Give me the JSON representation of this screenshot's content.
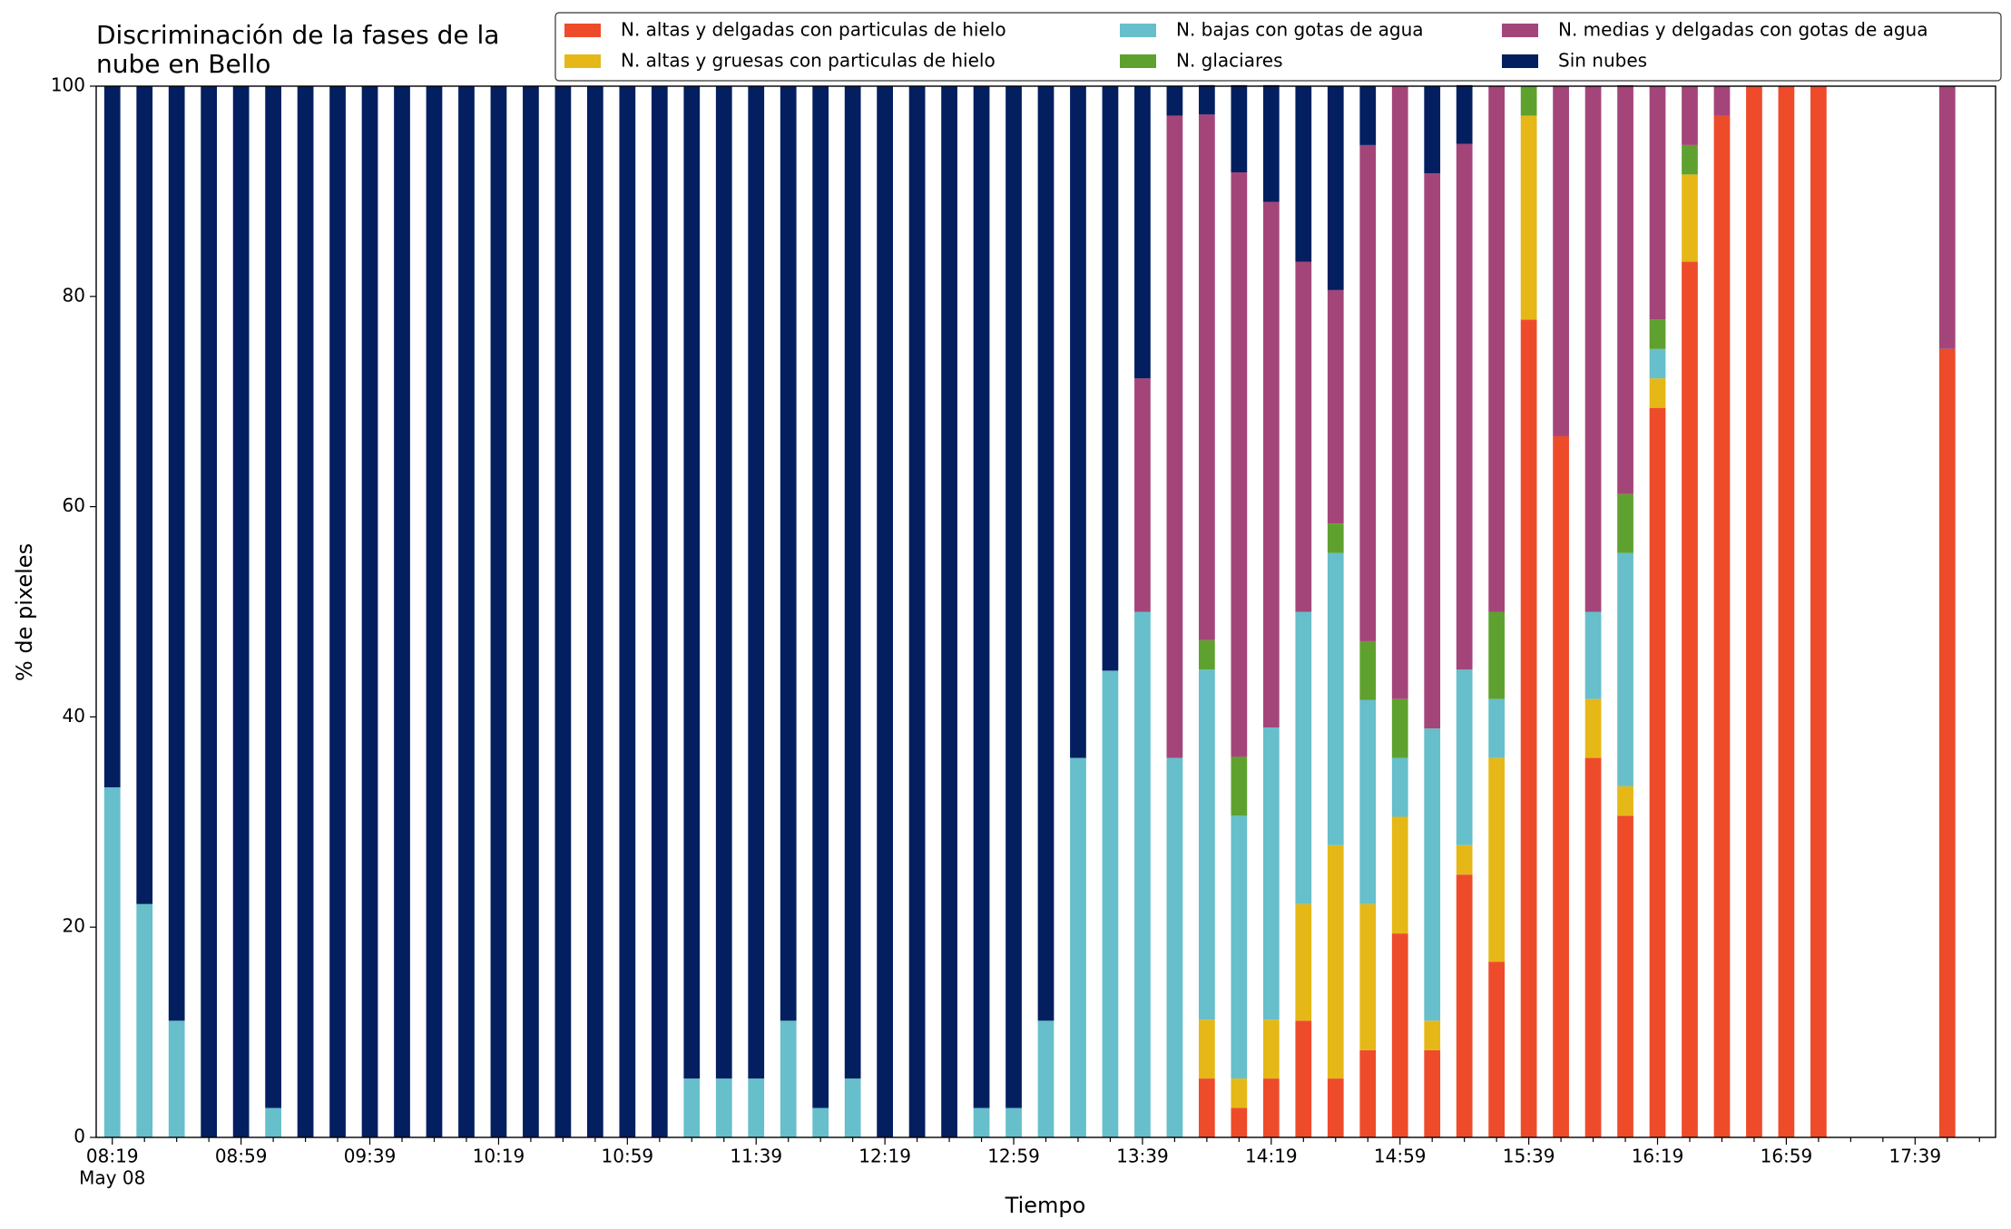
{
  "chart_data": {
    "type": "stacked_bar",
    "title": [
      "Discriminación de la fases de la",
      "nube en Bello"
    ],
    "x_label": "Tiempo",
    "y_label": "% de pixeles",
    "x_sublabel": "May 08",
    "categories": [
      "08:19",
      null,
      null,
      null,
      "08:59",
      null,
      null,
      null,
      "09:39",
      null,
      null,
      null,
      "10:19",
      null,
      null,
      null,
      "10:59",
      null,
      null,
      null,
      "11:39",
      null,
      null,
      null,
      "12:19",
      null,
      null,
      null,
      "12:59",
      null,
      null,
      null,
      "13:39",
      null,
      null,
      null,
      "14:19",
      null,
      null,
      null,
      "14:59",
      null,
      null,
      null,
      "15:39",
      null,
      null,
      null,
      "16:19",
      null,
      null,
      null,
      "16:59",
      null,
      null,
      null,
      "17:39",
      null,
      null
    ],
    "series": [
      {
        "name": "N. altas y delgadas con particulas de hielo",
        "color": "#ee4b2b",
        "values": [
          0,
          0,
          0,
          0,
          0,
          0,
          0,
          0,
          0,
          0,
          0,
          0,
          0,
          0,
          0,
          0,
          0,
          0,
          0,
          0,
          0,
          0,
          0,
          0,
          0,
          0,
          0,
          0,
          0,
          0,
          0,
          0,
          0,
          0,
          5.6,
          2.8,
          5.6,
          11.1,
          5.6,
          8.3,
          19.4,
          8.3,
          25,
          16.7,
          77.8,
          66.7,
          36.1,
          30.6,
          69.4,
          83.3,
          97.2,
          100,
          100,
          100,
          0,
          0,
          0,
          75,
          0
        ]
      },
      {
        "name": "N. altas y gruesas con particulas de hielo",
        "color": "#e6b817",
        "values": [
          0,
          0,
          0,
          0,
          0,
          0,
          0,
          0,
          0,
          0,
          0,
          0,
          0,
          0,
          0,
          0,
          0,
          0,
          0,
          0,
          0,
          0,
          0,
          0,
          0,
          0,
          0,
          0,
          0,
          0,
          0,
          0,
          0,
          0,
          5.6,
          2.8,
          5.6,
          11.1,
          22.2,
          13.9,
          11.1,
          2.8,
          2.8,
          19.4,
          19.4,
          0,
          5.6,
          2.8,
          2.8,
          8.3,
          0,
          0,
          0,
          0,
          0,
          0,
          0,
          0,
          0
        ]
      },
      {
        "name": "N. bajas con gotas de agua",
        "color": "#66bfcb",
        "values": [
          33.3,
          22.2,
          11.1,
          0,
          0,
          2.8,
          0,
          0,
          0,
          0,
          0,
          0,
          0,
          0,
          0,
          0,
          0,
          0,
          5.6,
          5.6,
          5.6,
          11.1,
          2.8,
          5.6,
          0,
          0,
          0,
          2.8,
          2.8,
          11.1,
          36.1,
          44.4,
          50,
          36.1,
          33.3,
          25,
          27.8,
          27.8,
          27.8,
          19.4,
          5.6,
          27.8,
          16.7,
          5.6,
          0,
          0,
          8.3,
          22.2,
          2.8,
          0,
          0,
          0,
          0,
          0,
          0,
          0,
          0,
          0,
          0
        ]
      },
      {
        "name": "N. glaciares",
        "color": "#5fa12e",
        "values": [
          0,
          0,
          0,
          0,
          0,
          0,
          0,
          0,
          0,
          0,
          0,
          0,
          0,
          0,
          0,
          0,
          0,
          0,
          0,
          0,
          0,
          0,
          0,
          0,
          0,
          0,
          0,
          0,
          0,
          0,
          0,
          0,
          0,
          0,
          2.8,
          5.6,
          0,
          0,
          2.8,
          5.6,
          5.6,
          0,
          0,
          8.3,
          2.8,
          0,
          0,
          5.6,
          2.8,
          2.8,
          0,
          0,
          0,
          0,
          0,
          0,
          0,
          0,
          0
        ]
      },
      {
        "name": "N. medias y delgadas con gotas de agua",
        "color": "#a4457a",
        "values": [
          0,
          0,
          0,
          0,
          0,
          0,
          0,
          0,
          0,
          0,
          0,
          0,
          0,
          0,
          0,
          0,
          0,
          0,
          0,
          0,
          0,
          0,
          0,
          0,
          0,
          0,
          0,
          0,
          0,
          0,
          0,
          0,
          22.2,
          61.1,
          50,
          55.6,
          50,
          33.3,
          22.2,
          47.2,
          58.3,
          52.8,
          50,
          50,
          0,
          33.3,
          50,
          38.9,
          22.2,
          5.6,
          2.8,
          0,
          0,
          0,
          0,
          0,
          0,
          25,
          0
        ]
      },
      {
        "name": "Sin nubes",
        "color": "#031f5f",
        "values": [
          66.7,
          77.8,
          88.9,
          100,
          100,
          97.2,
          100,
          100,
          100,
          100,
          100,
          100,
          100,
          100,
          100,
          100,
          100,
          100,
          94.4,
          94.4,
          94.4,
          88.9,
          97.2,
          94.4,
          100,
          100,
          100,
          97.2,
          97.2,
          88.9,
          63.9,
          55.6,
          27.8,
          2.8,
          2.8,
          8.3,
          11.1,
          16.7,
          19.4,
          5.6,
          0,
          8.3,
          5.6,
          0,
          0,
          0,
          0,
          0,
          0,
          0,
          0,
          0,
          0,
          0,
          0,
          0,
          0,
          0,
          0
        ]
      }
    ],
    "ylim": [
      0,
      100
    ],
    "yticks": [
      0,
      20,
      40,
      60,
      80,
      100
    ],
    "legend": "top-right"
  }
}
